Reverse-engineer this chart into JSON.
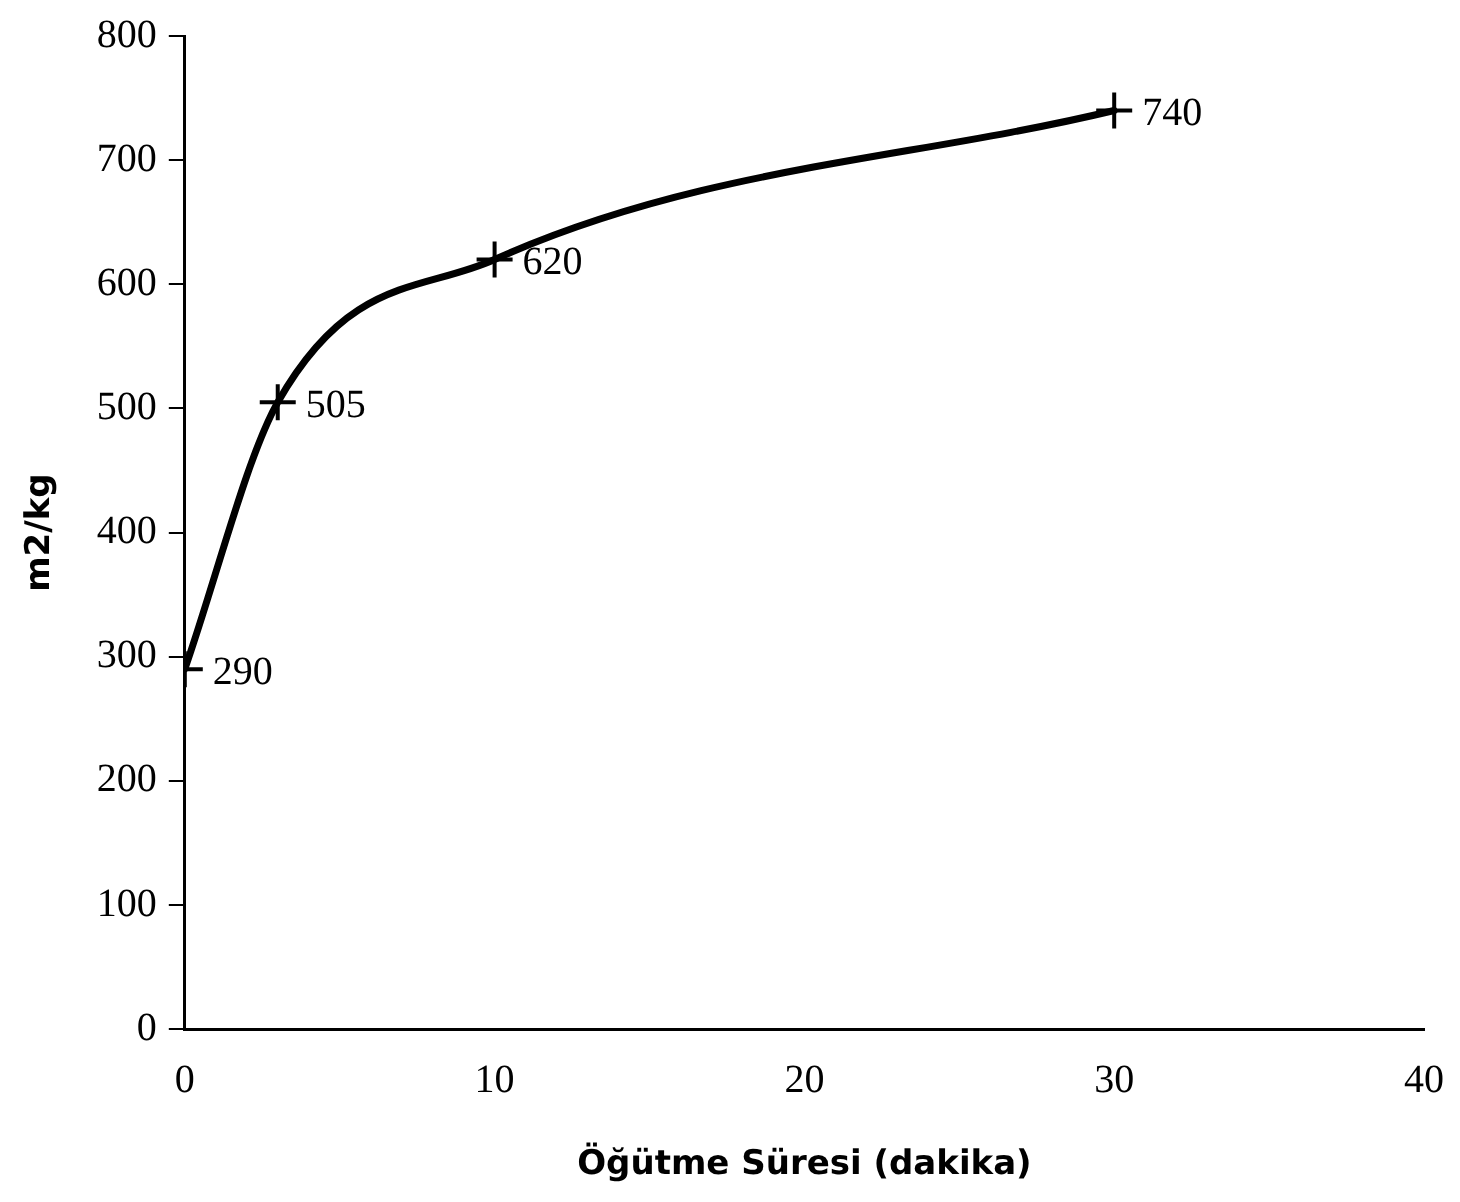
{
  "chart_data": {
    "type": "line",
    "xlabel": "Öğütme Süresi (dakika)",
    "ylabel": "m2/kg",
    "x": [
      0,
      3,
      10,
      30
    ],
    "series": [
      {
        "color": "#000000",
        "values": [
          290,
          505,
          620,
          740
        ]
      }
    ],
    "xlim": [
      0,
      40
    ],
    "xticks": [
      0,
      10,
      20,
      30,
      40
    ],
    "ylim": [
      0,
      800
    ],
    "yticks": [
      0,
      100,
      200,
      300,
      400,
      500,
      600,
      700,
      800
    ],
    "grid": false,
    "legend": false,
    "marker": "cross",
    "line_style": "solid",
    "data_labels": true
  }
}
